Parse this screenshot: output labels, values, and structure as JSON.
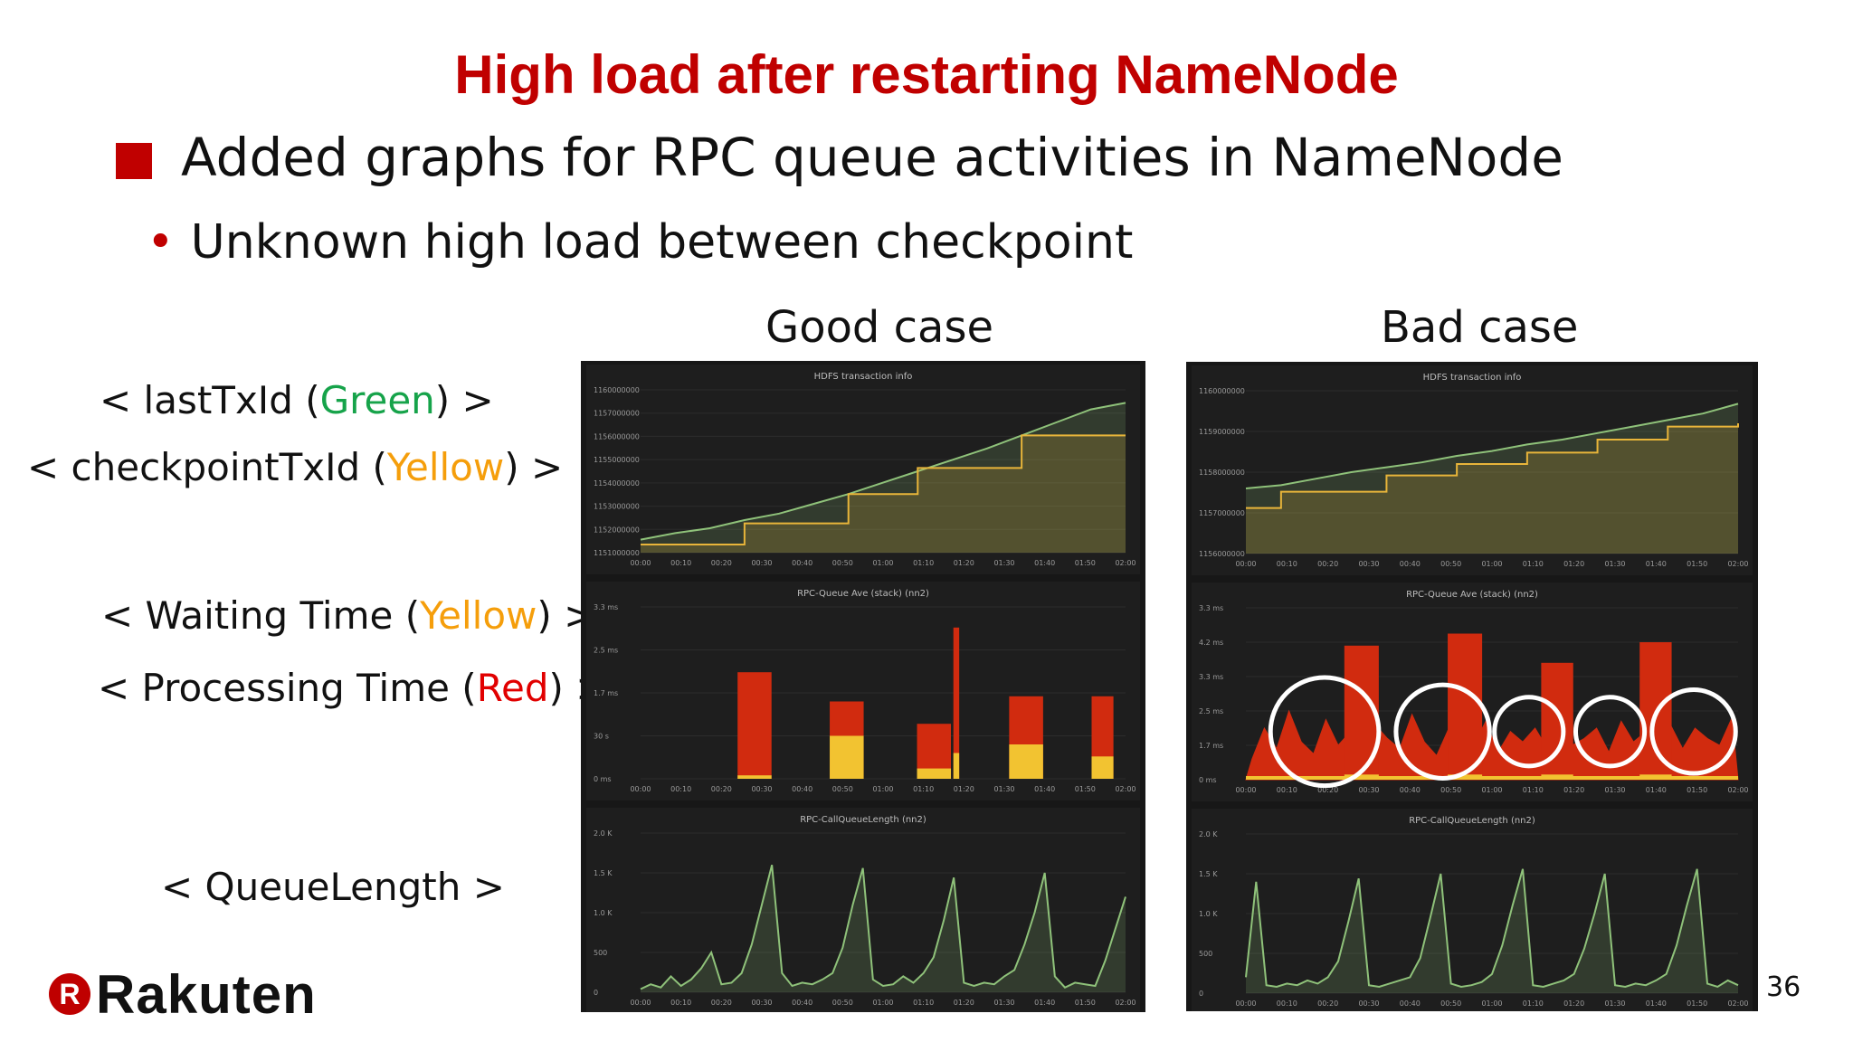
{
  "slide": {
    "title": "High load after restarting NameNode",
    "bullet1": "Added graphs for RPC queue activities in NameNode",
    "bullet2": "Unknown high load between checkpoint",
    "good_label": "Good case",
    "bad_label": "Bad case",
    "page_number": "36",
    "logo_mark": "R",
    "logo_text": "Rakuten"
  },
  "legend": {
    "line1": {
      "pre": "< lastTxId (",
      "color_word": "Green",
      "post": ") >"
    },
    "line2": {
      "pre": "< checkpointTxId (",
      "color_word": "Yellow",
      "post": ") >"
    },
    "line3": {
      "pre": "< Waiting Time (",
      "color_word": "Yellow",
      "post": ") >"
    },
    "line4": {
      "pre": "< Processing Time (",
      "color_word": "Red",
      "post": ") >"
    },
    "line5": "< QueueLength >"
  },
  "colors": {
    "title": "#c00000",
    "green": "#16a34a",
    "yellow": "#f59e0b",
    "red": "#e10000",
    "panel_bg": "#171717",
    "line_green": "#8fc27a",
    "line_yellow": "#e8b53a",
    "bar_red": "#d12b0f",
    "bar_yellow": "#f2c331",
    "circle": "#ffffff"
  },
  "x_ticks": [
    "00:00",
    "00:10",
    "00:20",
    "00:30",
    "00:40",
    "00:50",
    "01:00",
    "01:10",
    "01:20",
    "01:30",
    "01:40",
    "01:50",
    "02:00"
  ],
  "chart_data": [
    {
      "panel": "good",
      "type": "line",
      "title": "HDFS transaction info",
      "y_ticks": [
        "1160000000",
        "1157000000",
        "1156000000",
        "1155000000",
        "1154000000",
        "1153000000",
        "1152000000",
        "1151000000"
      ],
      "series": [
        {
          "name": "lastTxId",
          "color": "green",
          "values": [
            0.08,
            0.12,
            0.15,
            0.2,
            0.24,
            0.3,
            0.36,
            0.43,
            0.5,
            0.57,
            0.64,
            0.72,
            0.8,
            0.88,
            0.92
          ]
        },
        {
          "name": "checkpointTxId",
          "color": "yellow",
          "values": [
            0.05,
            0.05,
            0.05,
            0.18,
            0.18,
            0.18,
            0.36,
            0.36,
            0.52,
            0.52,
            0.52,
            0.72,
            0.72,
            0.72,
            0.72
          ]
        }
      ]
    },
    {
      "panel": "good",
      "type": "bar",
      "title": "RPC-Queue Ave (stack) (nn2)",
      "y_ticks": [
        "3.3 ms",
        "2.5 ms",
        "1.7 ms",
        "30 s",
        "0 ms"
      ],
      "bursts": [
        {
          "x": 0.2,
          "w": 0.07,
          "processing": 0.62,
          "waiting": 0.02
        },
        {
          "x": 0.39,
          "w": 0.07,
          "processing": 0.45,
          "waiting": 0.25
        },
        {
          "x": 0.57,
          "w": 0.07,
          "processing": 0.32,
          "waiting": 0.06
        },
        {
          "x": 0.645,
          "w": 0.012,
          "processing": 0.88,
          "waiting": 0.15
        },
        {
          "x": 0.76,
          "w": 0.07,
          "processing": 0.48,
          "waiting": 0.2
        },
        {
          "x": 0.93,
          "w": 0.045,
          "processing": 0.48,
          "waiting": 0.13
        }
      ]
    },
    {
      "panel": "good",
      "type": "line",
      "title": "RPC-CallQueueLength (nn2)",
      "y_ticks": [
        "2.0 K",
        "1.5 K",
        "1.0 K",
        "500",
        "0"
      ],
      "series": [
        {
          "name": "QueueLength",
          "color": "green",
          "values": [
            0.02,
            0.05,
            0.03,
            0.1,
            0.04,
            0.08,
            0.15,
            0.25,
            0.05,
            0.06,
            0.12,
            0.3,
            0.55,
            0.8,
            0.12,
            0.04,
            0.06,
            0.05,
            0.08,
            0.12,
            0.28,
            0.55,
            0.78,
            0.08,
            0.04,
            0.05,
            0.1,
            0.06,
            0.12,
            0.22,
            0.45,
            0.72,
            0.06,
            0.04,
            0.06,
            0.05,
            0.1,
            0.14,
            0.3,
            0.5,
            0.75,
            0.1,
            0.03,
            0.06,
            0.05,
            0.04,
            0.2,
            0.4,
            0.6
          ]
        }
      ]
    },
    {
      "panel": "bad",
      "type": "line",
      "title": "HDFS transaction info",
      "y_ticks": [
        "1160000000",
        "1159000000",
        "1158000000",
        "1157000000",
        "1156000000"
      ],
      "series": [
        {
          "name": "lastTxId",
          "color": "green",
          "values": [
            0.4,
            0.42,
            0.46,
            0.5,
            0.53,
            0.56,
            0.6,
            0.63,
            0.67,
            0.7,
            0.74,
            0.78,
            0.82,
            0.86,
            0.92
          ]
        },
        {
          "name": "checkpointTxId",
          "color": "yellow",
          "values": [
            0.28,
            0.38,
            0.38,
            0.38,
            0.48,
            0.48,
            0.55,
            0.55,
            0.62,
            0.62,
            0.7,
            0.7,
            0.78,
            0.78,
            0.8
          ]
        }
      ]
    },
    {
      "panel": "bad",
      "type": "bar",
      "title": "RPC-Queue Ave (stack) (nn2)",
      "y_ticks": [
        "3.3 ms",
        "4.2 ms",
        "3.3 ms",
        "2.5 ms",
        "1.7 ms",
        "0 ms"
      ],
      "bursts": [
        {
          "x": 0.2,
          "w": 0.07,
          "processing": 0.78,
          "waiting": 0.03
        },
        {
          "x": 0.41,
          "w": 0.07,
          "processing": 0.85,
          "waiting": 0.03
        },
        {
          "x": 0.6,
          "w": 0.065,
          "processing": 0.68,
          "waiting": 0.03
        },
        {
          "x": 0.8,
          "w": 0.065,
          "processing": 0.8,
          "waiting": 0.03
        }
      ],
      "spikes": [
        0.12,
        0.3,
        0.18,
        0.4,
        0.22,
        0.15,
        0.35,
        0.2,
        0.28,
        0.16,
        0.32,
        0.24,
        0.18,
        0.38,
        0.22,
        0.14,
        0.3,
        0.26,
        0.2,
        0.34,
        0.16,
        0.28,
        0.22,
        0.3,
        0.18,
        0.36,
        0.2,
        0.24,
        0.3,
        0.16,
        0.34,
        0.22,
        0.28,
        0.2,
        0.32,
        0.18,
        0.3,
        0.24,
        0.2,
        0.36
      ],
      "highlight_circles": [
        {
          "cx": 0.16,
          "cy": 0.72,
          "r": 0.11
        },
        {
          "cx": 0.4,
          "cy": 0.72,
          "r": 0.095
        },
        {
          "cx": 0.575,
          "cy": 0.72,
          "r": 0.07
        },
        {
          "cx": 0.74,
          "cy": 0.72,
          "r": 0.07
        },
        {
          "cx": 0.91,
          "cy": 0.72,
          "r": 0.085
        }
      ]
    },
    {
      "panel": "bad",
      "type": "line",
      "title": "RPC-CallQueueLength (nn2)",
      "y_ticks": [
        "2.0 K",
        "1.5 K",
        "1.0 K",
        "500",
        "0"
      ],
      "series": [
        {
          "name": "QueueLength",
          "color": "green",
          "values": [
            0.1,
            0.7,
            0.05,
            0.04,
            0.06,
            0.05,
            0.08,
            0.06,
            0.1,
            0.2,
            0.45,
            0.72,
            0.05,
            0.04,
            0.06,
            0.08,
            0.1,
            0.22,
            0.48,
            0.75,
            0.06,
            0.04,
            0.05,
            0.07,
            0.12,
            0.3,
            0.55,
            0.78,
            0.05,
            0.04,
            0.06,
            0.08,
            0.12,
            0.28,
            0.5,
            0.75,
            0.05,
            0.04,
            0.06,
            0.05,
            0.08,
            0.12,
            0.3,
            0.55,
            0.78,
            0.06,
            0.04,
            0.08,
            0.05
          ]
        }
      ]
    }
  ]
}
